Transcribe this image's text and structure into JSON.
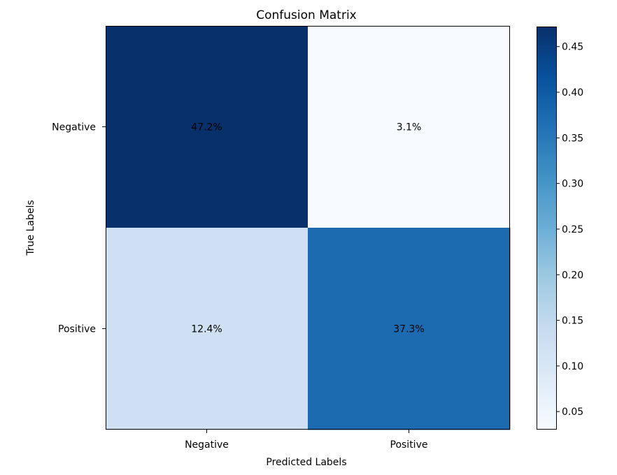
{
  "chart_data": {
    "type": "heatmap",
    "title": "Confusion Matrix",
    "xlabel": "Predicted Labels",
    "ylabel": "True Labels",
    "x_categories": [
      "Negative",
      "Positive"
    ],
    "y_categories": [
      "Negative",
      "Positive"
    ],
    "values": [
      [
        0.472,
        0.031
      ],
      [
        0.124,
        0.373
      ]
    ],
    "cell_labels": [
      [
        "47.2%",
        "3.1%"
      ],
      [
        "12.4%",
        "37.3%"
      ]
    ],
    "colormap": "Blues",
    "colorbar": {
      "range": [
        0.031,
        0.472
      ],
      "ticks": [
        0.05,
        0.1,
        0.15,
        0.2,
        0.25,
        0.3,
        0.35,
        0.4,
        0.45
      ],
      "tick_labels": [
        "0.05",
        "0.10",
        "0.15",
        "0.20",
        "0.25",
        "0.30",
        "0.35",
        "0.40",
        "0.45"
      ]
    }
  }
}
